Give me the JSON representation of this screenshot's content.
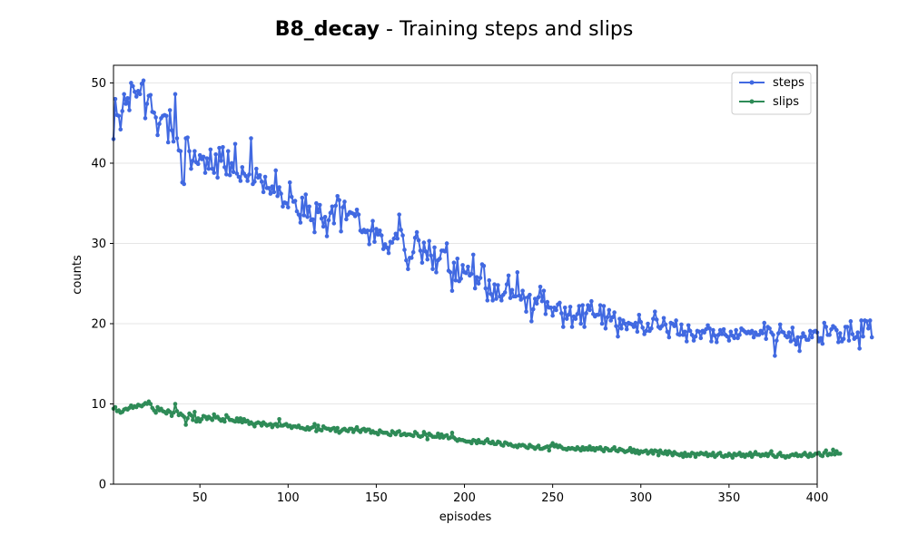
{
  "title": {
    "bold": "B8_decay",
    "rest": " - Training steps and slips"
  },
  "chart_data": {
    "type": "line",
    "xlabel": "episodes",
    "ylabel": "counts",
    "xlim": [
      1,
      400
    ],
    "ylim": [
      0,
      52.2
    ],
    "xticks": [
      50,
      100,
      150,
      200,
      250,
      300,
      350,
      400
    ],
    "yticks": [
      0,
      10,
      20,
      30,
      40,
      50
    ],
    "grid": "horizontal",
    "legend": "top-right",
    "series": [
      {
        "name": "steps",
        "color": "#4169e1",
        "values": [
          43.0,
          48.0,
          46.0,
          45.9,
          44.2,
          46.5,
          48.6,
          47.4,
          48.1,
          46.6,
          50.0,
          49.6,
          48.9,
          48.3,
          49.0,
          48.6,
          49.9,
          50.3,
          45.6,
          47.4,
          48.4,
          48.5,
          46.4,
          46.3,
          45.7,
          43.5,
          44.9,
          45.6,
          45.9,
          46.0,
          45.9,
          42.6,
          46.6,
          44.1,
          42.7,
          48.6,
          43.1,
          41.6,
          41.5,
          37.6,
          37.4,
          43.1,
          43.2,
          41.5,
          39.3,
          40.3,
          41.5,
          40.1,
          39.9,
          41.0,
          40.5,
          40.8,
          38.8,
          40.6,
          39.3,
          41.7,
          39.3,
          38.8,
          41.1,
          38.2,
          41.9,
          40.3,
          42.0,
          39.5,
          38.6,
          41.5,
          38.5,
          40.0,
          38.9,
          42.4,
          38.7,
          38.3,
          37.8,
          39.5,
          38.7,
          38.4,
          37.8,
          38.6,
          43.1,
          37.4,
          37.7,
          39.3,
          38.2,
          38.5,
          37.7,
          36.4,
          38.3,
          36.9,
          36.9,
          36.2,
          37.1,
          36.4,
          39.1,
          35.9,
          37.0,
          36.2,
          34.6,
          35.1,
          35.0,
          34.5,
          37.6,
          35.8,
          35.2,
          35.3,
          34.0,
          33.6,
          32.6,
          35.7,
          33.5,
          36.1,
          33.3,
          34.6,
          32.9,
          33.0,
          31.4,
          35.0,
          33.9,
          34.8,
          33.1,
          32.1,
          33.3,
          30.9,
          32.9,
          33.8,
          34.6,
          32.5,
          34.7,
          35.9,
          35.4,
          31.5,
          34.5,
          35.2,
          33.0,
          33.6,
          33.9,
          33.8,
          33.7,
          33.4,
          34.2,
          33.6,
          31.6,
          31.4,
          31.7,
          31.4,
          31.6,
          29.9,
          31.6,
          32.8,
          30.2,
          31.8,
          31.1,
          31.6,
          31.0,
          29.3,
          29.9,
          29.5,
          28.8,
          30.2,
          30.1,
          30.6,
          31.2,
          30.6,
          33.6,
          31.7,
          31.0,
          29.2,
          27.9,
          26.8,
          28.2,
          28.2,
          28.9,
          30.7,
          31.4,
          30.4,
          29.1,
          27.6,
          30.1,
          29.0,
          28.0,
          30.3,
          28.5,
          26.8,
          29.5,
          26.4,
          27.9,
          28.1,
          29.1,
          29.1,
          29.0,
          30.0,
          26.6,
          26.4,
          24.1,
          27.6,
          25.4,
          28.1,
          25.3,
          25.6,
          27.3,
          26.4,
          26.3,
          27.1,
          26.0,
          26.2,
          28.6,
          24.4,
          25.8,
          25.0,
          25.7,
          27.4,
          27.2,
          24.4,
          22.9,
          25.4,
          23.7,
          22.9,
          24.9,
          23.1,
          24.8,
          23.4,
          22.9,
          23.6,
          23.9,
          24.9,
          26.0,
          23.2,
          24.2,
          23.4,
          23.4,
          26.4,
          23.5,
          23.0,
          24.1,
          23.2,
          21.5,
          23.3,
          23.6,
          20.3,
          21.8,
          23.1,
          22.5,
          23.3,
          24.6,
          22.8,
          24.1,
          21.2,
          22.7,
          22.0,
          22.0,
          21.0,
          22.0,
          21.7,
          22.4,
          22.6,
          21.3,
          19.6,
          22.0,
          20.6,
          21.1,
          22.1,
          19.6,
          20.9,
          20.6,
          21.2,
          22.2,
          20.0,
          22.3,
          19.6,
          21.3,
          22.3,
          21.7,
          22.8,
          21.2,
          20.9,
          21.1,
          21.1,
          22.3,
          20.0,
          22.2,
          19.4,
          20.8,
          21.7,
          20.4,
          20.8,
          21.4,
          19.7,
          18.4,
          20.6,
          19.4,
          20.4,
          20.0,
          19.3,
          20.1,
          20.0,
          19.9,
          19.6,
          20.1,
          19.0,
          21.1,
          20.2,
          19.5,
          18.7,
          19.1,
          20.0,
          19.1,
          19.4,
          20.6,
          21.5,
          20.5,
          19.6,
          19.4,
          19.7,
          20.7,
          19.9,
          19.0,
          18.3,
          20.1,
          20.0,
          19.7,
          20.4,
          18.7,
          18.6,
          19.9,
          18.6,
          19.0,
          17.8,
          19.8,
          19.1,
          18.6,
          17.9,
          18.4,
          19.1,
          19.0,
          18.2,
          19.1,
          18.9,
          19.3,
          19.8,
          19.4,
          17.8,
          19.2,
          18.5,
          17.7,
          18.6,
          19.2,
          18.7,
          19.3,
          18.6,
          18.4,
          17.9,
          19.0,
          18.5,
          18.2,
          19.2,
          18.2,
          18.6,
          19.4,
          19.2,
          19.0,
          18.8,
          19.0,
          18.8,
          19.1,
          18.3,
          18.9,
          18.6,
          18.6,
          19.1,
          18.8,
          20.1,
          18.1,
          19.6,
          19.4,
          18.9,
          18.6,
          16.0,
          17.9,
          18.8,
          19.9,
          19.0,
          18.9,
          18.5,
          18.3,
          18.9,
          17.8,
          19.5,
          18.0,
          17.4,
          18.3,
          16.6,
          18.3,
          18.8,
          18.4,
          18.0,
          18.0,
          19.1,
          18.3,
          19.0,
          19.1,
          18.9,
          17.8,
          18.2,
          17.5,
          20.1,
          19.6,
          18.6,
          18.6,
          19.3,
          19.7,
          19.5,
          19.2,
          17.7,
          18.8,
          17.8,
          18.1,
          19.6,
          19.6,
          17.9,
          20.3,
          18.7,
          18.1,
          18.3,
          18.9,
          16.9,
          20.4,
          18.4,
          20.4,
          20.3,
          19.4,
          20.4,
          18.3
        ]
      },
      {
        "name": "slips",
        "color": "#2e8b57",
        "values": [
          9.4,
          9.6,
          9.1,
          9.2,
          8.9,
          9.0,
          9.3,
          9.4,
          9.3,
          9.5,
          9.8,
          9.5,
          9.7,
          9.6,
          9.9,
          9.8,
          9.7,
          9.9,
          10.1,
          10.0,
          10.3,
          10.0,
          9.5,
          9.2,
          8.9,
          9.6,
          9.2,
          9.4,
          9.1,
          9.0,
          8.8,
          9.2,
          9.0,
          8.5,
          8.9,
          10.0,
          9.1,
          8.6,
          8.8,
          8.6,
          8.4,
          7.4,
          8.2,
          8.8,
          8.6,
          8.0,
          9.0,
          7.8,
          8.2,
          7.8,
          8.1,
          8.5,
          8.4,
          8.1,
          8.4,
          8.2,
          8.0,
          8.7,
          8.3,
          8.4,
          8.1,
          7.9,
          8.1,
          7.8,
          8.6,
          8.3,
          8.0,
          8.0,
          7.9,
          7.8,
          8.2,
          7.8,
          8.2,
          7.7,
          8.1,
          7.8,
          7.9,
          7.5,
          7.7,
          7.5,
          7.2,
          7.6,
          7.7,
          7.6,
          7.3,
          7.7,
          7.5,
          7.3,
          7.4,
          7.5,
          7.1,
          7.4,
          7.5,
          7.2,
          8.1,
          7.3,
          7.3,
          7.4,
          7.5,
          7.2,
          7.3,
          7.0,
          7.2,
          7.2,
          7.1,
          7.3,
          7.0,
          7.0,
          6.9,
          6.8,
          7.1,
          6.8,
          7.0,
          7.1,
          7.5,
          6.6,
          7.3,
          6.8,
          6.7,
          7.2,
          7.0,
          6.9,
          6.9,
          6.7,
          6.9,
          7.0,
          6.6,
          7.0,
          6.4,
          6.6,
          6.8,
          6.9,
          6.7,
          6.6,
          6.9,
          6.9,
          6.5,
          6.8,
          7.1,
          6.7,
          6.5,
          6.8,
          6.9,
          6.6,
          6.8,
          6.8,
          6.4,
          6.6,
          6.4,
          6.4,
          6.2,
          6.7,
          6.5,
          6.4,
          6.4,
          6.4,
          6.2,
          6.1,
          6.6,
          6.4,
          6.2,
          6.5,
          6.6,
          6.1,
          6.2,
          6.3,
          6.1,
          6.2,
          6.2,
          6.1,
          6.0,
          6.5,
          6.3,
          6.0,
          5.9,
          6.0,
          6.5,
          6.2,
          5.6,
          6.3,
          6.1,
          5.9,
          5.9,
          5.9,
          6.3,
          5.8,
          6.2,
          5.8,
          6.0,
          6.1,
          5.7,
          5.8,
          6.4,
          5.8,
          5.6,
          5.4,
          5.6,
          5.5,
          5.5,
          5.4,
          5.3,
          5.3,
          5.3,
          5.1,
          5.5,
          5.4,
          5.1,
          5.5,
          5.2,
          5.2,
          5.1,
          5.4,
          5.6,
          5.2,
          5.1,
          5.3,
          5.0,
          5.0,
          5.3,
          5.2,
          4.9,
          4.8,
          5.2,
          5.1,
          4.9,
          5.0,
          4.8,
          4.7,
          4.8,
          4.6,
          4.9,
          4.8,
          4.9,
          4.8,
          4.6,
          4.5,
          4.9,
          4.7,
          4.6,
          4.4,
          4.6,
          4.8,
          4.4,
          4.4,
          4.5,
          4.6,
          4.7,
          4.2,
          4.8,
          5.1,
          4.7,
          4.9,
          4.6,
          4.8,
          4.6,
          4.4,
          4.4,
          4.3,
          4.5,
          4.4,
          4.5,
          4.4,
          4.3,
          4.6,
          4.4,
          4.2,
          4.6,
          4.3,
          4.5,
          4.3,
          4.7,
          4.3,
          4.5,
          4.2,
          4.5,
          4.4,
          4.6,
          4.3,
          4.1,
          4.5,
          4.4,
          4.2,
          4.2,
          4.4,
          4.6,
          4.2,
          4.1,
          4.4,
          4.3,
          4.2,
          4.0,
          4.1,
          4.2,
          4.5,
          4.0,
          4.3,
          3.9,
          4.2,
          3.8,
          4.1,
          4.0,
          4.1,
          4.2,
          3.8,
          4.0,
          4.2,
          3.8,
          4.2,
          4.1,
          3.6,
          4.2,
          3.9,
          3.8,
          4.1,
          3.7,
          4.1,
          3.9,
          3.6,
          4.0,
          3.8,
          3.7,
          3.6,
          3.8,
          3.4,
          3.9,
          3.5,
          3.7,
          3.5,
          3.9,
          3.8,
          3.4,
          3.8,
          3.7,
          3.9,
          3.8,
          3.7,
          3.9,
          3.5,
          3.7,
          3.6,
          3.9,
          3.4,
          3.6,
          3.8,
          3.9,
          3.5,
          3.4,
          3.6,
          3.5,
          3.8,
          3.6,
          3.3,
          3.8,
          3.6,
          3.7,
          3.9,
          3.5,
          3.7,
          3.4,
          3.7,
          3.6,
          3.9,
          3.4,
          3.7,
          4.0,
          3.7,
          3.7,
          3.5,
          3.7,
          3.6,
          3.8,
          3.5,
          3.8,
          4.1,
          3.6,
          3.4,
          3.4,
          3.7,
          3.9,
          3.5,
          3.5,
          3.3,
          3.5,
          3.4,
          3.6,
          3.7,
          3.6,
          3.8,
          3.5,
          3.6,
          3.5,
          3.7,
          3.9,
          3.6,
          3.4,
          3.8,
          3.5,
          3.6,
          3.8,
          3.8,
          3.9,
          3.6,
          3.5,
          3.9,
          4.2,
          3.6,
          3.8,
          3.7,
          4.3,
          3.7,
          4.1,
          3.8,
          3.8
        ]
      }
    ]
  }
}
